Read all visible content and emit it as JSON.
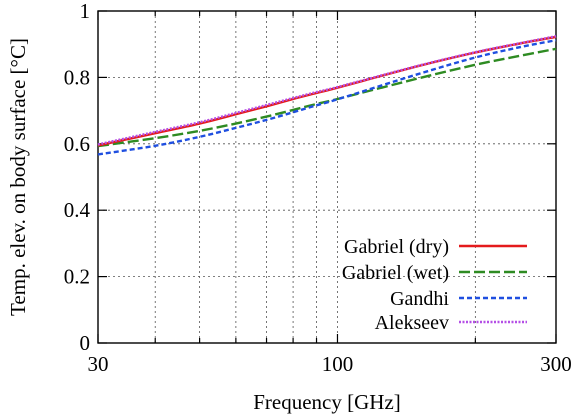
{
  "chart_data": {
    "type": "line",
    "xlabel": "Frequency [GHz]",
    "ylabel": "Temp. elev. on body surface [°C]",
    "x_scale": "log",
    "xlim": [
      30,
      300
    ],
    "ylim": [
      0,
      1
    ],
    "x_ticks": [
      30,
      100,
      300
    ],
    "x_tick_labels": [
      "30",
      "100",
      "300"
    ],
    "x_minor_gridlines": [
      40,
      50,
      60,
      70,
      80,
      90,
      200
    ],
    "y_ticks": [
      0,
      0.2,
      0.4,
      0.6,
      0.8,
      1
    ],
    "y_tick_labels": [
      "0",
      "0.2",
      "0.4",
      "0.6",
      "0.8",
      "1"
    ],
    "grid": true,
    "legend_position": "bottom-right",
    "x": [
      30,
      40,
      50,
      60,
      70,
      80,
      90,
      100,
      150,
      200,
      250,
      300
    ],
    "series": [
      {
        "name": "Gabriel (dry)",
        "color": "#e41a1c",
        "dash": "solid",
        "values": [
          0.595,
          0.632,
          0.661,
          0.689,
          0.713,
          0.735,
          0.753,
          0.769,
          0.834,
          0.875,
          0.902,
          0.922
        ]
      },
      {
        "name": "Gabriel (wet)",
        "color": "#2e8b22",
        "dash": "long-dash",
        "values": [
          0.593,
          0.617,
          0.639,
          0.661,
          0.682,
          0.702,
          0.72,
          0.735,
          0.797,
          0.838,
          0.865,
          0.886
        ]
      },
      {
        "name": "Gandhi",
        "color": "#1f4fe0",
        "dash": "short-dash",
        "values": [
          0.568,
          0.594,
          0.621,
          0.648,
          0.672,
          0.695,
          0.716,
          0.734,
          0.81,
          0.86,
          0.891,
          0.912
        ]
      },
      {
        "name": "Alekseev",
        "color": "#b44fe6",
        "dash": "dotted",
        "values": [
          0.598,
          0.636,
          0.665,
          0.693,
          0.717,
          0.738,
          0.756,
          0.771,
          0.835,
          0.876,
          0.903,
          0.924
        ]
      }
    ]
  }
}
